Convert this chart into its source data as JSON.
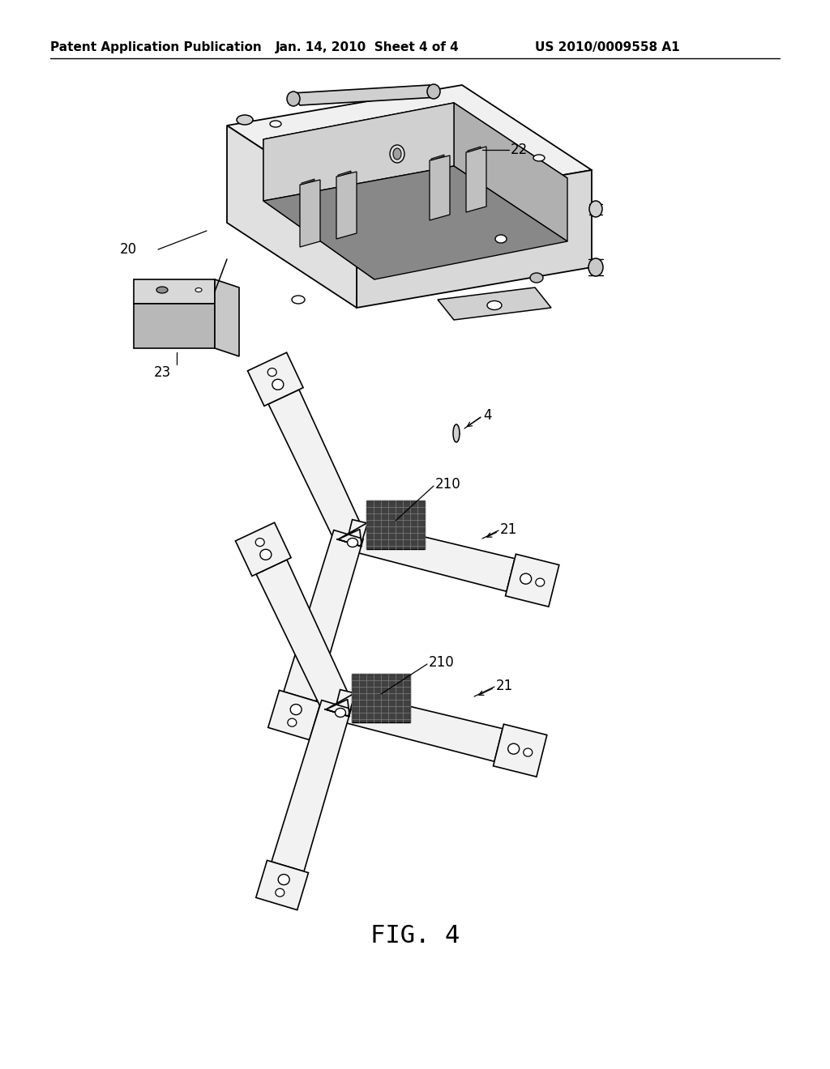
{
  "bg_color": "#ffffff",
  "header_left": "Patent Application Publication",
  "header_mid": "Jan. 14, 2010  Sheet 4 of 4",
  "header_right": "US 2010/0009558 A1",
  "fig_label": "FIG. 4",
  "text_color": "#000000"
}
